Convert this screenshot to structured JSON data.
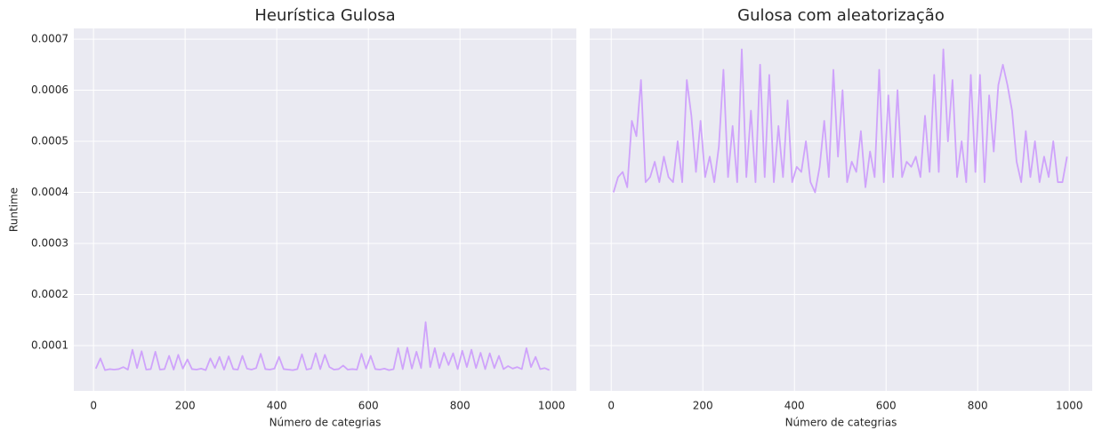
{
  "chart_data": [
    {
      "type": "line",
      "title": "Heurística Gulosa",
      "xlabel": "Número de categrias",
      "ylabel": "Runtime",
      "xlim": [
        -43,
        1054
      ],
      "ylim": [
        1.13e-05,
        0.000721
      ],
      "xticks": [
        0,
        200,
        400,
        600,
        800,
        1000
      ],
      "yticks": [
        0.0001,
        0.0002,
        0.0003,
        0.0004,
        0.0005,
        0.0006,
        0.0007
      ],
      "grid": true,
      "show_ytick_labels": true,
      "x": [
        5,
        15,
        25,
        35,
        45,
        55,
        65,
        75,
        85,
        95,
        105,
        115,
        125,
        135,
        145,
        155,
        165,
        175,
        185,
        195,
        205,
        215,
        225,
        235,
        245,
        255,
        265,
        275,
        285,
        295,
        305,
        315,
        325,
        335,
        345,
        355,
        365,
        375,
        385,
        395,
        405,
        415,
        425,
        435,
        445,
        455,
        465,
        475,
        485,
        495,
        505,
        515,
        525,
        535,
        545,
        555,
        565,
        575,
        585,
        595,
        605,
        615,
        625,
        635,
        645,
        655,
        665,
        675,
        685,
        695,
        705,
        715,
        725,
        735,
        745,
        755,
        765,
        775,
        785,
        795,
        805,
        815,
        825,
        835,
        845,
        855,
        865,
        875,
        885,
        895,
        905,
        915,
        925,
        935,
        945,
        955,
        965,
        975,
        985,
        995
      ],
      "series": [
        {
          "color": "#cfa3fb",
          "values": [
            5.5e-05,
            7.5e-05,
            5.2e-05,
            5.4e-05,
            5.3e-05,
            5.4e-05,
            5.8e-05,
            5.3e-05,
            9.2e-05,
            5.6e-05,
            8.9e-05,
            5.3e-05,
            5.4e-05,
            8.8e-05,
            5.3e-05,
            5.4e-05,
            8e-05,
            5.3e-05,
            8.2e-05,
            5.5e-05,
            7.3e-05,
            5.4e-05,
            5.3e-05,
            5.5e-05,
            5.2e-05,
            7.5e-05,
            5.6e-05,
            7.8e-05,
            5.3e-05,
            7.9e-05,
            5.4e-05,
            5.3e-05,
            8e-05,
            5.5e-05,
            5.3e-05,
            5.6e-05,
            8.4e-05,
            5.4e-05,
            5.3e-05,
            5.5e-05,
            7.8e-05,
            5.4e-05,
            5.3e-05,
            5.2e-05,
            5.4e-05,
            8.3e-05,
            5.3e-05,
            5.5e-05,
            8.5e-05,
            5.4e-05,
            8.2e-05,
            5.8e-05,
            5.3e-05,
            5.4e-05,
            6.1e-05,
            5.3e-05,
            5.4e-05,
            5.3e-05,
            8.4e-05,
            5.5e-05,
            8e-05,
            5.4e-05,
            5.3e-05,
            5.5e-05,
            5.2e-05,
            5.4e-05,
            9.5e-05,
            5.4e-05,
            9.6e-05,
            5.5e-05,
            8.8e-05,
            5.6e-05,
            0.000146,
            5.8e-05,
            9.5e-05,
            5.6e-05,
            8.6e-05,
            6.2e-05,
            8.5e-05,
            5.4e-05,
            9e-05,
            5.8e-05,
            9.2e-05,
            5.6e-05,
            8.6e-05,
            5.4e-05,
            8.5e-05,
            5.6e-05,
            8e-05,
            5.4e-05,
            6e-05,
            5.5e-05,
            5.8e-05,
            5.4e-05,
            9.5e-05,
            5.8e-05,
            7.8e-05,
            5.4e-05,
            5.6e-05,
            5.2e-05
          ]
        }
      ]
    },
    {
      "type": "line",
      "title": "Gulosa com aleatorização",
      "xlabel": "Número de categrias",
      "xlim": [
        -47,
        1050
      ],
      "ylim": [
        1.13e-05,
        0.000721
      ],
      "xticks": [
        0,
        200,
        400,
        600,
        800,
        1000
      ],
      "yticks": [
        0.0001,
        0.0002,
        0.0003,
        0.0004,
        0.0005,
        0.0006,
        0.0007
      ],
      "grid": true,
      "show_ytick_labels": false,
      "x": [
        5,
        15,
        25,
        35,
        45,
        55,
        65,
        75,
        85,
        95,
        105,
        115,
        125,
        135,
        145,
        155,
        165,
        175,
        185,
        195,
        205,
        215,
        225,
        235,
        245,
        255,
        265,
        275,
        285,
        295,
        305,
        315,
        325,
        335,
        345,
        355,
        365,
        375,
        385,
        395,
        405,
        415,
        425,
        435,
        445,
        455,
        465,
        475,
        485,
        495,
        505,
        515,
        525,
        535,
        545,
        555,
        565,
        575,
        585,
        595,
        605,
        615,
        625,
        635,
        645,
        655,
        665,
        675,
        685,
        695,
        705,
        715,
        725,
        735,
        745,
        755,
        765,
        775,
        785,
        795,
        805,
        815,
        825,
        835,
        845,
        855,
        865,
        875,
        885,
        895,
        905,
        915,
        925,
        935,
        945,
        955,
        965,
        975,
        985,
        995
      ],
      "series": [
        {
          "color": "#cfa3fb",
          "values": [
            0.0004,
            0.00043,
            0.00044,
            0.00041,
            0.00054,
            0.00051,
            0.00062,
            0.00042,
            0.00043,
            0.00046,
            0.00042,
            0.00047,
            0.00043,
            0.00042,
            0.0005,
            0.00042,
            0.00062,
            0.00055,
            0.00044,
            0.00054,
            0.00043,
            0.00047,
            0.00042,
            0.00049,
            0.00064,
            0.00043,
            0.00053,
            0.00042,
            0.00068,
            0.00043,
            0.00056,
            0.00042,
            0.00065,
            0.00043,
            0.00063,
            0.00042,
            0.00053,
            0.00043,
            0.00058,
            0.00042,
            0.00045,
            0.00044,
            0.0005,
            0.00042,
            0.0004,
            0.00045,
            0.00054,
            0.00043,
            0.00064,
            0.00047,
            0.0006,
            0.00042,
            0.00046,
            0.00044,
            0.00052,
            0.00041,
            0.00048,
            0.00043,
            0.00064,
            0.00042,
            0.00059,
            0.00043,
            0.0006,
            0.00043,
            0.00046,
            0.00045,
            0.00047,
            0.00043,
            0.00055,
            0.00044,
            0.00063,
            0.00044,
            0.00068,
            0.0005,
            0.00062,
            0.00043,
            0.0005,
            0.00042,
            0.00063,
            0.00044,
            0.00063,
            0.00042,
            0.00059,
            0.00048,
            0.00061,
            0.00065,
            0.00061,
            0.00056,
            0.00046,
            0.00042,
            0.00052,
            0.00043,
            0.0005,
            0.00042,
            0.00047,
            0.00043,
            0.0005,
            0.00042,
            0.00042,
            0.00047
          ]
        }
      ]
    }
  ]
}
